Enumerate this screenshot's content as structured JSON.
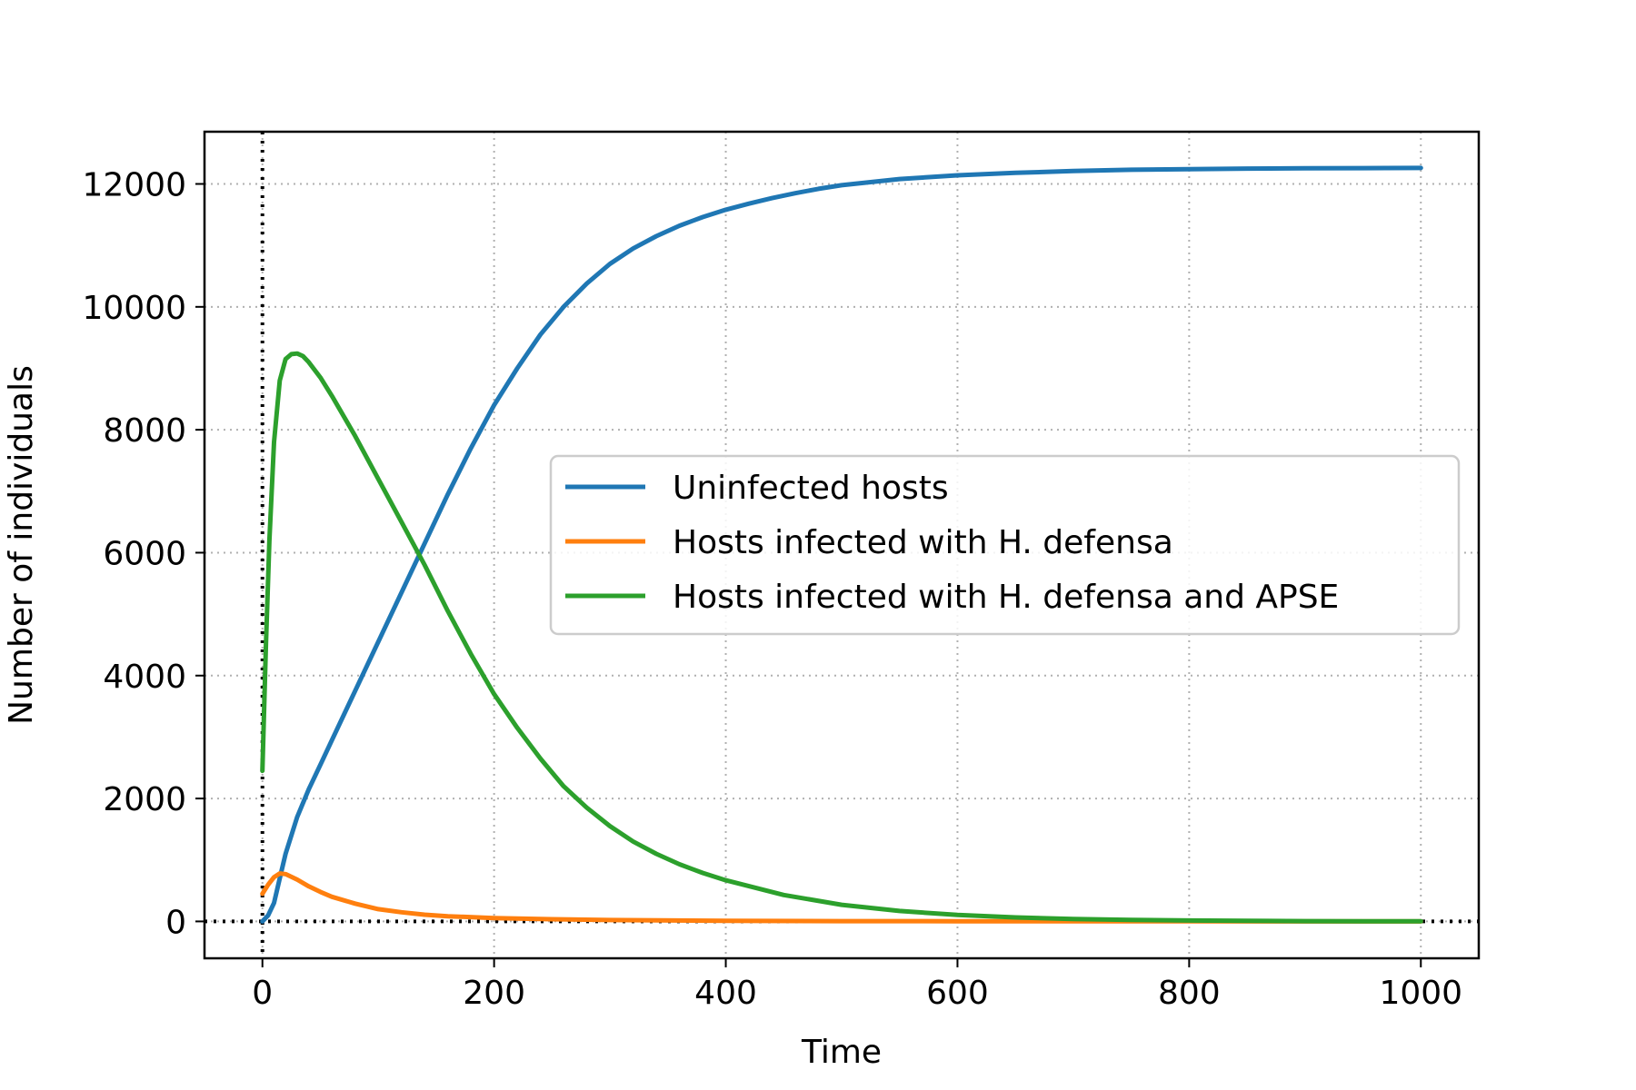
{
  "chart_data": {
    "type": "line",
    "xlabel": "Time",
    "ylabel": "Number of individuals",
    "xlim": [
      -50,
      1050
    ],
    "ylim": [
      -600,
      12850
    ],
    "xticks": [
      0,
      200,
      400,
      600,
      800,
      1000
    ],
    "yticks": [
      0,
      2000,
      4000,
      6000,
      8000,
      10000,
      12000
    ],
    "grid": true,
    "legend_position": "center-right",
    "reference_lines": [
      {
        "orientation": "vertical",
        "value": 0,
        "style": "dotted",
        "color": "#000000"
      },
      {
        "orientation": "horizontal",
        "value": 0,
        "style": "dotted",
        "color": "#000000"
      }
    ],
    "series": [
      {
        "name": "Uninfected hosts",
        "color": "#1f77b4",
        "x": [
          0,
          5,
          10,
          15,
          20,
          30,
          40,
          50,
          60,
          80,
          100,
          120,
          140,
          160,
          180,
          200,
          220,
          240,
          260,
          280,
          300,
          320,
          340,
          360,
          380,
          400,
          420,
          440,
          460,
          480,
          500,
          550,
          600,
          650,
          700,
          750,
          800,
          850,
          900,
          950,
          1000
        ],
        "y": [
          0,
          100,
          300,
          700,
          1100,
          1700,
          2150,
          2550,
          2950,
          3750,
          4550,
          5350,
          6150,
          6950,
          7700,
          8400,
          9000,
          9550,
          10000,
          10380,
          10700,
          10950,
          11150,
          11320,
          11460,
          11580,
          11680,
          11770,
          11850,
          11920,
          11980,
          12080,
          12140,
          12180,
          12210,
          12230,
          12240,
          12250,
          12255,
          12258,
          12260
        ]
      },
      {
        "name": "Hosts infected with H. defensa",
        "color": "#ff7f0e",
        "x": [
          0,
          5,
          10,
          15,
          20,
          30,
          40,
          50,
          60,
          80,
          100,
          120,
          140,
          160,
          200,
          250,
          300,
          400,
          500,
          600,
          700,
          800,
          900,
          1000
        ],
        "y": [
          450,
          600,
          720,
          780,
          770,
          680,
          570,
          480,
          400,
          290,
          200,
          150,
          110,
          85,
          55,
          35,
          22,
          10,
          5,
          3,
          2,
          1,
          0,
          0
        ]
      },
      {
        "name": "Hosts infected with H. defensa and APSE",
        "color": "#2ca02c",
        "x": [
          0,
          3,
          6,
          10,
          15,
          20,
          25,
          30,
          35,
          40,
          50,
          60,
          80,
          100,
          120,
          140,
          160,
          180,
          200,
          220,
          240,
          260,
          280,
          300,
          320,
          340,
          360,
          380,
          400,
          450,
          500,
          550,
          600,
          650,
          700,
          750,
          800,
          850,
          900,
          950,
          1000
        ],
        "y": [
          2450,
          4500,
          6200,
          7800,
          8800,
          9150,
          9230,
          9240,
          9200,
          9100,
          8850,
          8550,
          7900,
          7200,
          6500,
          5800,
          5050,
          4350,
          3700,
          3150,
          2650,
          2200,
          1850,
          1550,
          1300,
          1100,
          930,
          790,
          670,
          430,
          270,
          170,
          105,
          65,
          40,
          25,
          15,
          9,
          5,
          3,
          2
        ]
      }
    ]
  }
}
